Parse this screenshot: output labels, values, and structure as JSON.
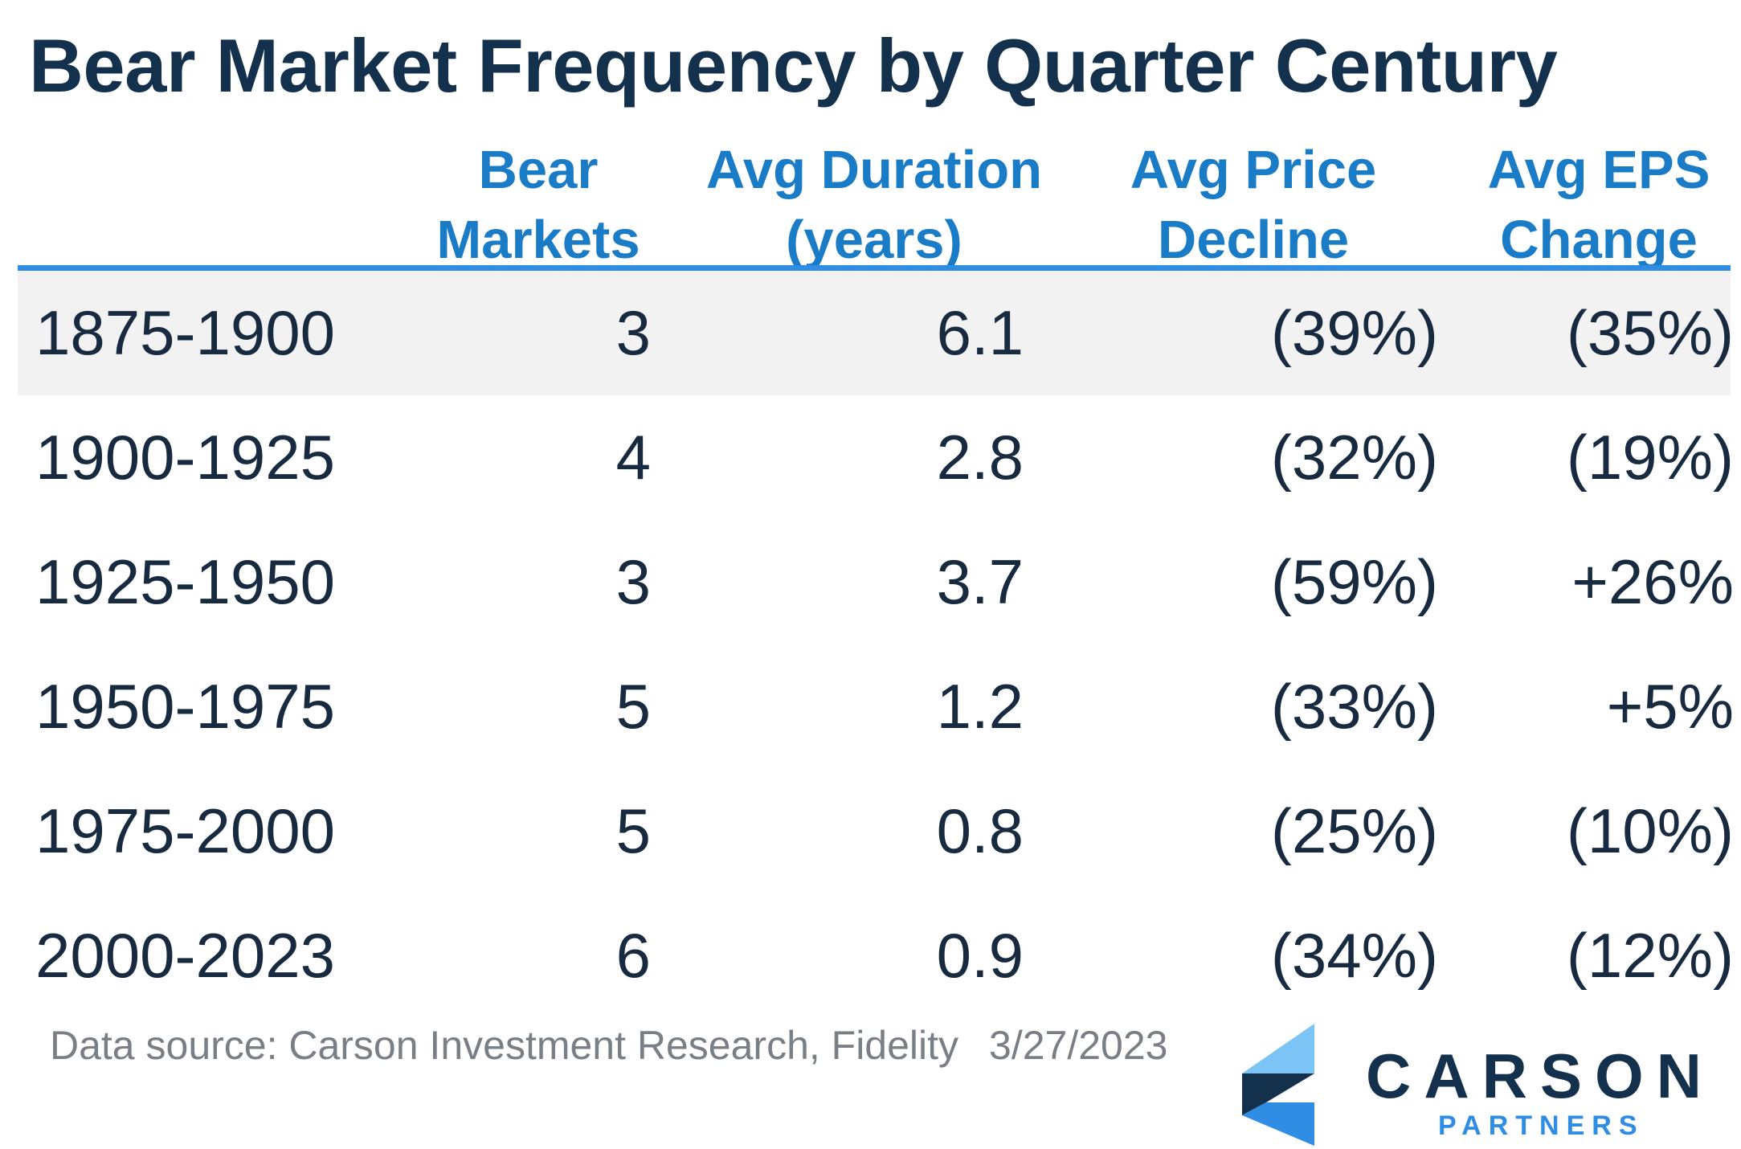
{
  "title": "Bear Market Frequency by Quarter Century",
  "headers": [
    {
      "line1": "",
      "line2": ""
    },
    {
      "line1": "Bear",
      "line2": "Markets"
    },
    {
      "line1": "Avg Duration",
      "line2": "(years)"
    },
    {
      "line1": "Avg Price",
      "line2": "Decline"
    },
    {
      "line1": "Avg EPS",
      "line2": "Change"
    }
  ],
  "chart_data": {
    "type": "table",
    "title": "Bear Market Frequency by Quarter Century",
    "columns": [
      "",
      "Bear Markets",
      "Avg Duration (years)",
      "Avg Price Decline",
      "Avg EPS Change"
    ],
    "rows": [
      [
        "1875-1900",
        "3",
        "6.1",
        "(39%)",
        "(35%)"
      ],
      [
        "1900-1925",
        "4",
        "2.8",
        "(32%)",
        "(19%)"
      ],
      [
        "1925-1950",
        "3",
        "3.7",
        "(59%)",
        "+26%"
      ],
      [
        "1950-1975",
        "5",
        "1.2",
        "(33%)",
        "+5%"
      ],
      [
        "1975-2000",
        "5",
        "0.8",
        "(25%)",
        "(10%)"
      ],
      [
        "2000-2023",
        "6",
        "0.9",
        "(34%)",
        "(12%)"
      ]
    ]
  },
  "footer": {
    "source": "Data source: Carson Investment Research, Fidelity",
    "date": "3/27/2023"
  },
  "logo": {
    "word": "CARSON",
    "sub": "PARTNERS"
  },
  "colors": {
    "title": "#13304d",
    "header_text": "#1a7bc6",
    "rule": "#2f8de4",
    "row_shade": "#f2f2f2",
    "body_text": "#182a40",
    "source_text": "#7a7f86",
    "logo_light": "#7cc4f5",
    "logo_mid": "#2f8de4",
    "logo_dark": "#13304d"
  }
}
